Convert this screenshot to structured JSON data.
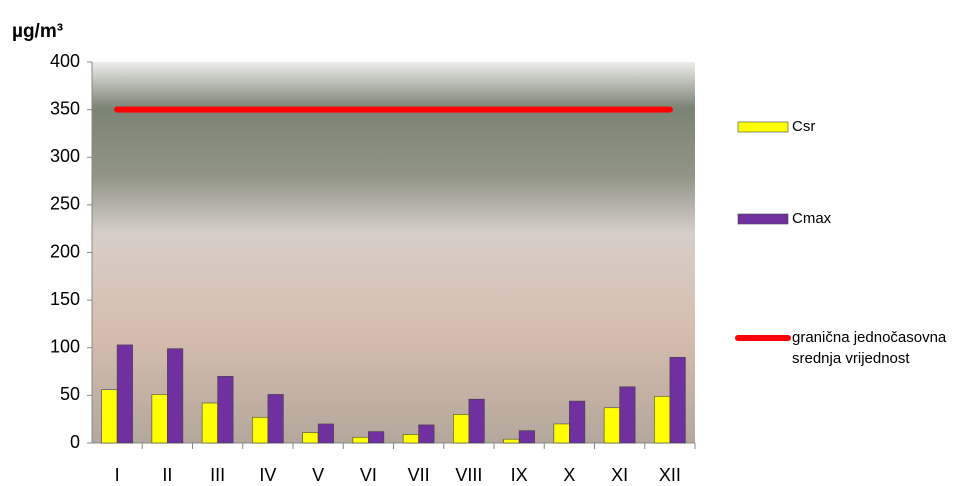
{
  "chart_data": {
    "type": "bar",
    "y_label": "µg/m³",
    "categories": [
      "I",
      "II",
      "III",
      "IV",
      "V",
      "VI",
      "VII",
      "VIII",
      "IX",
      "X",
      "XI",
      "XII"
    ],
    "series": [
      {
        "name": "Csr",
        "type": "bar",
        "color": "#ffff00",
        "values": [
          56,
          51,
          42,
          27,
          11,
          6,
          9,
          30,
          4,
          20,
          37,
          49
        ]
      },
      {
        "name": "Cmax",
        "type": "bar",
        "color": "#7030a0",
        "values": [
          103,
          99,
          70,
          51,
          20,
          12,
          19,
          46,
          13,
          44,
          59,
          90
        ]
      },
      {
        "name": "granična jednočasovna srednja vrijednost",
        "type": "line",
        "color": "#ff0000",
        "values": [
          350,
          350,
          350,
          350,
          350,
          350,
          350,
          350,
          350,
          350,
          350,
          350
        ]
      }
    ],
    "ylim": [
      0,
      400
    ],
    "yticks": [
      0,
      50,
      100,
      150,
      200,
      250,
      300,
      350,
      400
    ]
  }
}
